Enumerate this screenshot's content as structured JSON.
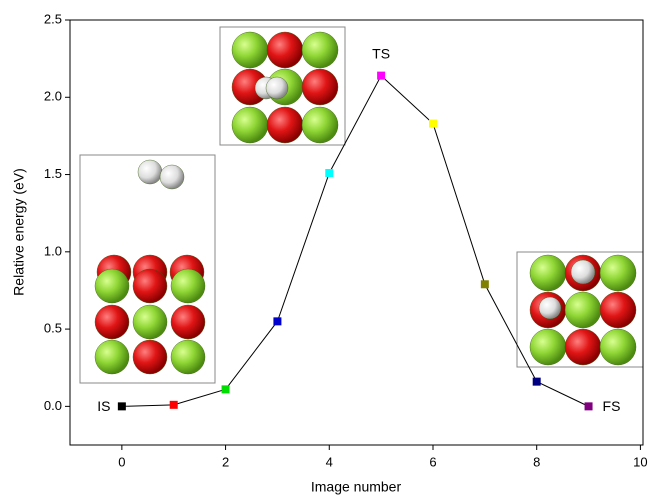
{
  "chart_data": {
    "type": "line",
    "x_label": "Image number",
    "y_label": "Relative energy (eV)",
    "x": [
      0,
      1,
      2,
      3,
      4,
      5,
      6,
      7,
      8,
      9
    ],
    "values": [
      0,
      0.01,
      0.11,
      0.55,
      1.51,
      2.14,
      1.83,
      0.79,
      0.16,
      0.0
    ],
    "colors": [
      "#000000",
      "#ff0000",
      "#00dd00",
      "#0000cc",
      "#00ffff",
      "#ff00ff",
      "#ffff00",
      "#808000",
      "#000080",
      "#800080"
    ],
    "line_color": "#000000",
    "annotations": [
      "IS",
      "TS",
      "FS"
    ],
    "xlim": [
      -1,
      10.05
    ],
    "ylim": [
      -0.25,
      2.5
    ],
    "xticks": [
      0,
      2,
      4,
      6,
      8,
      10
    ],
    "yticks": [
      {
        "value": 0,
        "label": "0.0"
      },
      0.5,
      {
        "value": 1,
        "label": "1.0"
      },
      1.5,
      {
        "value": 2,
        "label": "2.0"
      },
      2.5
    ]
  }
}
